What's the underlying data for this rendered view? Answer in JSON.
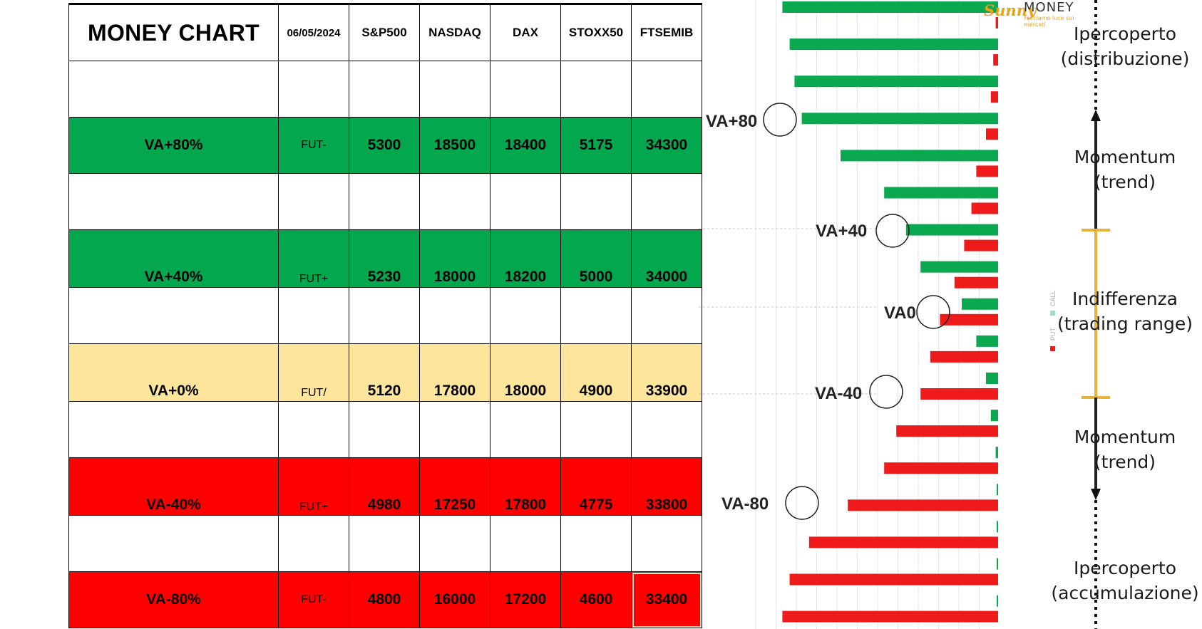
{
  "table": {
    "title": "MONEY CHART",
    "date": "06/05/2024",
    "indices": [
      "S&P500",
      "NASDAQ",
      "DAX",
      "STOXX50",
      "FTSEMIB"
    ],
    "rows": [
      {
        "label": "VA+80%",
        "fut": "FUT-",
        "values": [
          "5300",
          "18500",
          "18400",
          "5175",
          "34300"
        ],
        "color": "#03a84e"
      },
      {
        "label": "VA+40%",
        "fut": "FUT+",
        "values": [
          "5230",
          "18000",
          "18200",
          "5000",
          "34000"
        ],
        "color": "#03a84e"
      },
      {
        "label": "VA+0%",
        "fut": "FUT/",
        "values": [
          "5120",
          "17800",
          "18000",
          "4900",
          "33900"
        ],
        "color": "#fde59b"
      },
      {
        "label": "VA-40%",
        "fut": "FUT+",
        "values": [
          "4980",
          "17250",
          "17800",
          "4775",
          "33800"
        ],
        "color": "#ff0000"
      },
      {
        "label": "VA-80%",
        "fut": "FUT-",
        "values": [
          "4800",
          "16000",
          "17200",
          "4600",
          "33400"
        ],
        "color": "#ff0000"
      }
    ]
  },
  "logo": {
    "script": "Sunny",
    "word": "MONEY",
    "tagline": "Facciamo luce sui mercati"
  },
  "chart_data": {
    "type": "bar",
    "orientation": "horizontal",
    "series": [
      {
        "name": "CALL",
        "color": "#0aa84f",
        "values": [
          0.89,
          0.86,
          0.84,
          0.81,
          0.65,
          0.47,
          0.38,
          0.32,
          0.15,
          0.09,
          0.05,
          0.03,
          0.01,
          0.005,
          0.003,
          0.002,
          0.001
        ]
      },
      {
        "name": "PUT",
        "color": "#ef1a1a",
        "values": [
          0.01,
          0.02,
          0.03,
          0.05,
          0.09,
          0.11,
          0.14,
          0.18,
          0.24,
          0.28,
          0.32,
          0.42,
          0.47,
          0.62,
          0.78,
          0.86,
          0.89
        ]
      }
    ],
    "legend": [
      "PUT",
      "CALL"
    ],
    "legend_placement": "right",
    "va_labels": [
      "VA+80",
      "VA+40",
      "VA0",
      "VA-40",
      "VA-80"
    ],
    "zones": [
      "Ipercoperto\n(distribuzione)",
      "Momentum\n(trend)",
      "Indifferenza\n(trading range)",
      "Momentum\n(trend)",
      "Ipercoperto\n(accumulazione)"
    ]
  }
}
